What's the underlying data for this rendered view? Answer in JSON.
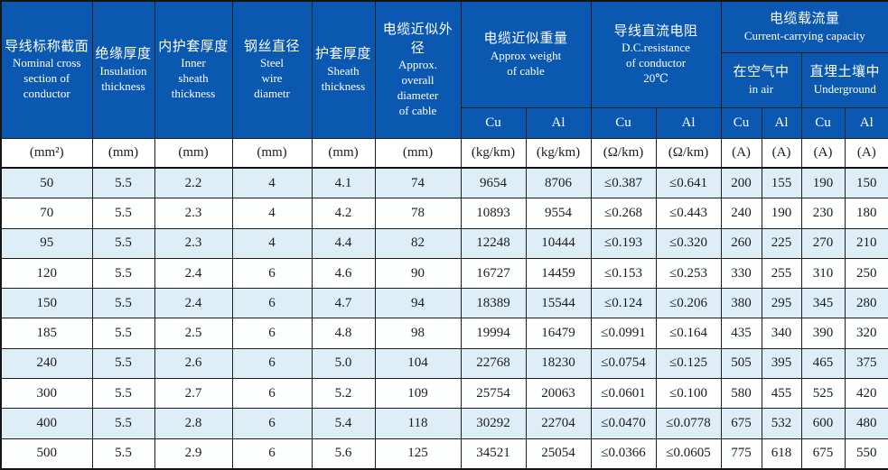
{
  "colors": {
    "header_blue": "#0b58b0",
    "row_alt": "#ddeef7",
    "border": "#1d1d1d",
    "header_text": "#ffffff",
    "body_text": "#1c1c1c"
  },
  "table": {
    "columns": [
      {
        "zh": "导线标称截面",
        "en": "Nominal cross\nsection of\nconductor"
      },
      {
        "zh": "绝缘厚度",
        "en": "Insulation\nthickness"
      },
      {
        "zh": "内护套厚度",
        "en": "Inner\nsheath\nthickness"
      },
      {
        "zh": "钢丝直径",
        "en": "Steel\nwire\ndiametr"
      },
      {
        "zh": "护套厚度",
        "en": "Sheath\nthickness"
      },
      {
        "zh": "电缆近似外径",
        "en": "Approx.\noverall\ndiameter\nof cable"
      },
      {
        "zh": "电缆近似重量",
        "en": "Approx weight\nof cable"
      },
      {
        "zh": "导线直流电阻",
        "en": "D.C.resistance\nof conductor\n20℃"
      },
      {
        "zh": "电缆载流量",
        "en": "Current-carrying capacity"
      }
    ],
    "subheaders": {
      "in_air": {
        "zh": "在空气中",
        "en": "in air"
      },
      "underground": {
        "zh": "直埋土壤中",
        "en": "Underground"
      }
    },
    "cu_al_labels": [
      "Cu",
      "Al",
      "Cu",
      "Al",
      "Cu",
      "Al",
      "Cu",
      "Al"
    ],
    "units": [
      "(mm²)",
      "(mm)",
      "(mm)",
      "(mm)",
      "(mm)",
      "(mm)",
      "(kg/km)",
      "(kg/km)",
      "(Ω/km)",
      "(Ω/km)",
      "(A)",
      "(A)",
      "(A)",
      "(A)"
    ],
    "rows": [
      [
        "50",
        "5.5",
        "2.2",
        "4",
        "4.1",
        "74",
        "9654",
        "8706",
        "≤0.387",
        "≤0.641",
        "200",
        "155",
        "190",
        "150"
      ],
      [
        "70",
        "5.5",
        "2.3",
        "4",
        "4.2",
        "78",
        "10893",
        "9554",
        "≤0.268",
        "≤0.443",
        "240",
        "190",
        "230",
        "180"
      ],
      [
        "95",
        "5.5",
        "2.3",
        "4",
        "4.4",
        "82",
        "12248",
        "10444",
        "≤0.193",
        "≤0.320",
        "260",
        "225",
        "270",
        "210"
      ],
      [
        "120",
        "5.5",
        "2.4",
        "6",
        "4.6",
        "90",
        "16727",
        "14459",
        "≤0.153",
        "≤0.253",
        "330",
        "255",
        "310",
        "250"
      ],
      [
        "150",
        "5.5",
        "2.4",
        "6",
        "4.7",
        "94",
        "18389",
        "15544",
        "≤0.124",
        "≤0.206",
        "380",
        "295",
        "345",
        "280"
      ],
      [
        "185",
        "5.5",
        "2.5",
        "6",
        "4.8",
        "98",
        "19994",
        "16479",
        "≤0.0991",
        "≤0.164",
        "435",
        "340",
        "390",
        "320"
      ],
      [
        "240",
        "5.5",
        "2.6",
        "6",
        "5.0",
        "104",
        "22768",
        "18230",
        "≤0.0754",
        "≤0.125",
        "505",
        "395",
        "465",
        "375"
      ],
      [
        "300",
        "5.5",
        "2.7",
        "6",
        "5.2",
        "109",
        "25754",
        "20063",
        "≤0.0601",
        "≤0.100",
        "580",
        "455",
        "525",
        "420"
      ],
      [
        "400",
        "5.5",
        "2.8",
        "6",
        "5.4",
        "118",
        "30292",
        "22704",
        "≤0.0470",
        "≤0.0778",
        "675",
        "532",
        "600",
        "480"
      ],
      [
        "500",
        "5.5",
        "2.9",
        "6",
        "5.6",
        "125",
        "34521",
        "25054",
        "≤0.0366",
        "≤0.0605",
        "775",
        "618",
        "675",
        "550"
      ]
    ]
  }
}
